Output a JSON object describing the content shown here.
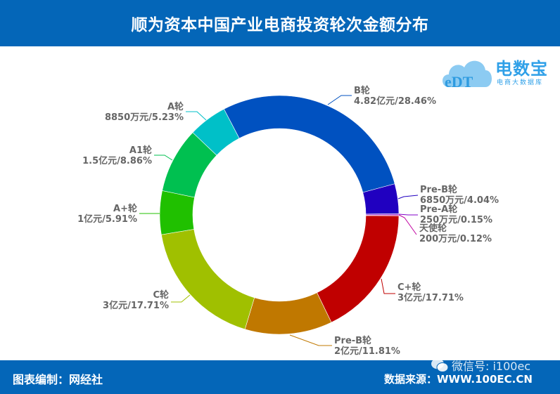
{
  "header": {
    "title": "顺为资本中国产业电商投资轮次金额分布"
  },
  "logo": {
    "brand": "电数宝",
    "subtitle": "电商大数据库",
    "mark": "eDT"
  },
  "footer": {
    "left": "图表编制：网经社",
    "right": "数据来源：WWW.100EC.CN",
    "watermark": "微信号: i100ec"
  },
  "chart_data": {
    "type": "pie",
    "subtype": "donut",
    "title": "顺为资本中国产业电商投资轮次金额分布",
    "center": [
      397,
      306
    ],
    "outer_radius": 170,
    "inner_radius": 123,
    "start_angle_deg": 0,
    "direction": "clockwise",
    "slices": [
      {
        "name": "天使轮",
        "amount": "200万元",
        "percent": 0.12,
        "color": "#C000A0",
        "label": "天使轮",
        "value_label": "200万元/0.12%",
        "label_pos": [
          596,
          318
        ],
        "side": "right",
        "line": [
          [
            567,
            306
          ],
          [
            575,
            310
          ],
          [
            592,
            334
          ]
        ]
      },
      {
        "name": "C+轮",
        "amount": "3亿元",
        "percent": 17.71,
        "color": "#C00000",
        "label": "C+轮",
        "value_label": "3亿元/17.71%",
        "label_pos": [
          565,
          402
        ],
        "side": "right",
        "line": [
          [
            542,
            397
          ],
          [
            546,
            418
          ],
          [
            562,
            418
          ]
        ]
      },
      {
        "name": "Pre-B轮",
        "amount": "2亿元",
        "percent": 11.81,
        "color": "#C07800",
        "label": "Pre-B轮",
        "value_label": "2亿元/11.81%",
        "label_pos": [
          475,
          478
        ],
        "side": "right",
        "line": [
          [
            412,
            477
          ],
          [
            453,
            492
          ],
          [
            472,
            492
          ]
        ]
      },
      {
        "name": "C轮",
        "amount": "3亿元",
        "percent": 17.71,
        "color": "#A0C000",
        "label": "C轮",
        "value_label": "3亿元/17.71%",
        "label_pos": [
          140,
          413
        ],
        "side": "left",
        "line": [
          [
            270,
            420
          ],
          [
            258,
            430
          ],
          [
            243,
            430
          ]
        ]
      },
      {
        "name": "A+轮",
        "amount": "1亿元",
        "percent": 5.91,
        "color": "#20C000",
        "label": "A+轮",
        "value_label": "1亿元/5.91%",
        "label_pos": [
          108,
          290
        ],
        "side": "left",
        "line": [
          [
            227,
            304
          ],
          [
            210,
            304
          ],
          [
            198,
            304
          ]
        ]
      },
      {
        "name": "A1轮",
        "amount": "1.5亿元",
        "percent": 8.86,
        "color": "#00C050",
        "label": "A1轮",
        "value_label": "1.5亿元/8.86%",
        "label_pos": [
          115,
          207
        ],
        "side": "left",
        "line": [
          [
            245,
            228
          ],
          [
            234,
            221
          ],
          [
            219,
            221
          ]
        ]
      },
      {
        "name": "A轮",
        "amount": "8850万元",
        "percent": 5.23,
        "color": "#00C0C8",
        "label": "A轮",
        "value_label": "8850万元/5.23%",
        "label_pos": [
          150,
          145
        ],
        "side": "left",
        "line": [
          [
            293,
            171
          ],
          [
            280,
            159
          ],
          [
            264,
            159
          ]
        ]
      },
      {
        "name": "B轮",
        "amount": "4.82亿元",
        "percent": 28.46,
        "color": "#0051C0",
        "label": "B轮",
        "value_label": "4.82亿元/28.46%",
        "label_pos": [
          503,
          122
        ],
        "side": "right",
        "line": [
          [
            466,
            149
          ],
          [
            485,
            136
          ],
          [
            500,
            136
          ]
        ]
      },
      {
        "name": "Pre-B轮",
        "amount": "6850万元",
        "percent": 4.04,
        "color": "#2000C0",
        "label": "Pre-B轮",
        "value_label": "6850万元/4.04%",
        "label_pos": [
          597,
          263
        ],
        "side": "right",
        "line": [
          [
            566,
            283
          ],
          [
            574,
            280
          ],
          [
            594,
            278
          ]
        ]
      },
      {
        "name": "Pre-A轮",
        "amount": "250万元",
        "percent": 0.15,
        "color": "#8000C8",
        "label": "Pre-A轮",
        "value_label": "250万元/0.15%",
        "label_pos": [
          597,
          291
        ],
        "side": "right",
        "line": [
          [
            567,
            305
          ],
          [
            580,
            306
          ],
          [
            594,
            306
          ]
        ]
      }
    ]
  }
}
